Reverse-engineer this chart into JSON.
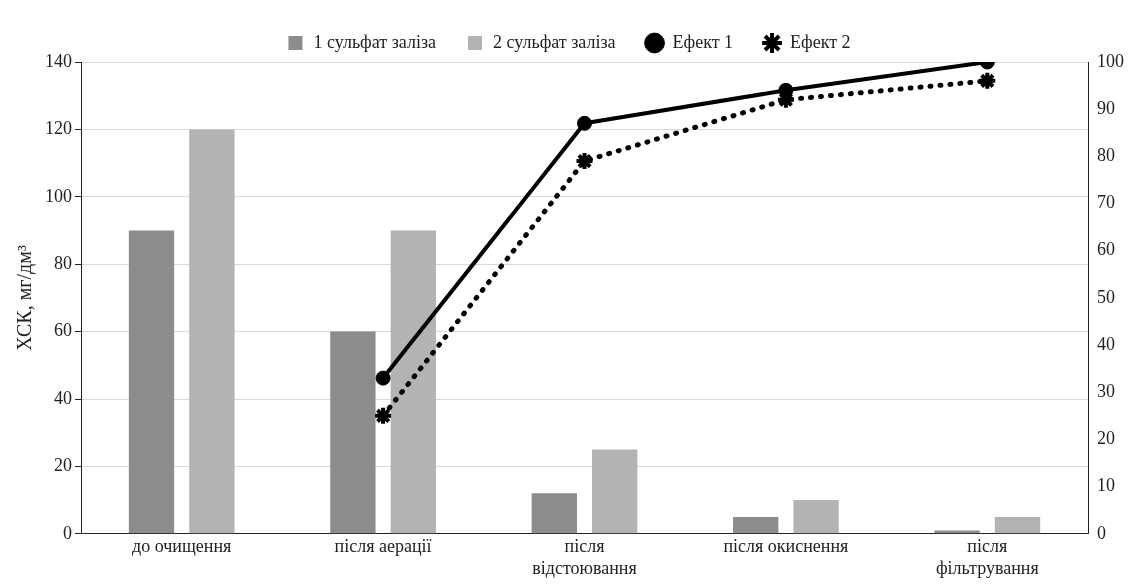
{
  "chart_data": {
    "type": "bar",
    "ylabel": "ХСК, мг/дм³",
    "categories": [
      "до очищення",
      "після аерації",
      "після відстоювання",
      "після окиснення",
      "після фільтрування"
    ],
    "series": [
      {
        "name": "1 сульфат заліза",
        "color": "#8c8c8c",
        "values": [
          90,
          60,
          12,
          5,
          1
        ]
      },
      {
        "name": "2 сульфат заліза",
        "color": "#b3b3b3",
        "values": [
          120,
          90,
          25,
          10,
          5
        ]
      },
      {
        "name": "Ефект 1",
        "type": "line",
        "axis": "y2",
        "color": "#000000",
        "marker": "circle",
        "line_style": "solid",
        "values": [
          null,
          33,
          87,
          94,
          100
        ]
      },
      {
        "name": "Ефект 2",
        "type": "line",
        "axis": "y2",
        "color": "#000000",
        "marker": "cross",
        "line_style": "dotted",
        "values": [
          null,
          25,
          79,
          92,
          96
        ]
      }
    ],
    "ylim": [
      0,
      140
    ],
    "yticks": [
      0,
      20,
      40,
      60,
      80,
      100,
      120,
      140
    ],
    "y2lim": [
      0,
      100
    ],
    "y2ticks": [
      0,
      10,
      20,
      30,
      40,
      50,
      60,
      70,
      80,
      90,
      100
    ],
    "grid": "y",
    "legend": "top"
  }
}
